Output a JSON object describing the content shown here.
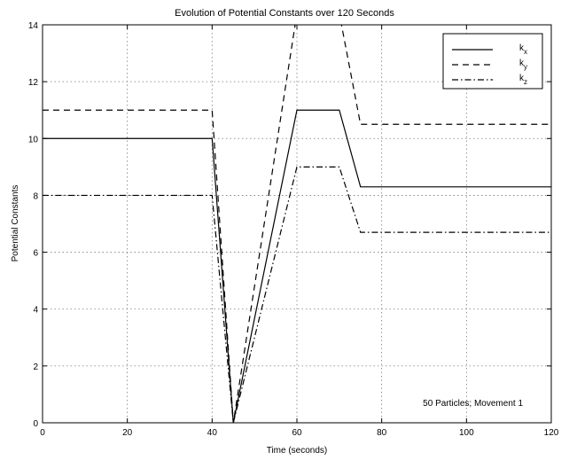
{
  "chart_data": {
    "type": "line",
    "title": "Evolution of Potential Constants over 120 Seconds",
    "xlabel": "Time (seconds)",
    "ylabel": "Potential Constants",
    "xlim": [
      0,
      120
    ],
    "ylim": [
      0,
      14
    ],
    "xticks": [
      0,
      20,
      40,
      60,
      80,
      100,
      120
    ],
    "yticks": [
      0,
      2,
      4,
      6,
      8,
      10,
      12,
      14
    ],
    "grid": true,
    "legend_position": "top-right",
    "annotation": "50 Particles; Movement 1",
    "series": [
      {
        "name": "k_x",
        "style": "solid",
        "x": [
          0,
          40,
          45,
          60,
          70,
          75,
          120
        ],
        "y": [
          10,
          10,
          0,
          11,
          11,
          8.3,
          8.3
        ]
      },
      {
        "name": "k_y",
        "style": "dashed",
        "x": [
          0,
          40,
          45,
          60,
          70,
          75,
          120
        ],
        "y": [
          11,
          11,
          0,
          14.4,
          14.4,
          10.5,
          10.5
        ]
      },
      {
        "name": "k_z",
        "style": "dashdot",
        "x": [
          0,
          40,
          45,
          60,
          70,
          75,
          120
        ],
        "y": [
          8,
          8,
          0,
          9,
          9,
          6.7,
          6.7
        ]
      }
    ]
  }
}
